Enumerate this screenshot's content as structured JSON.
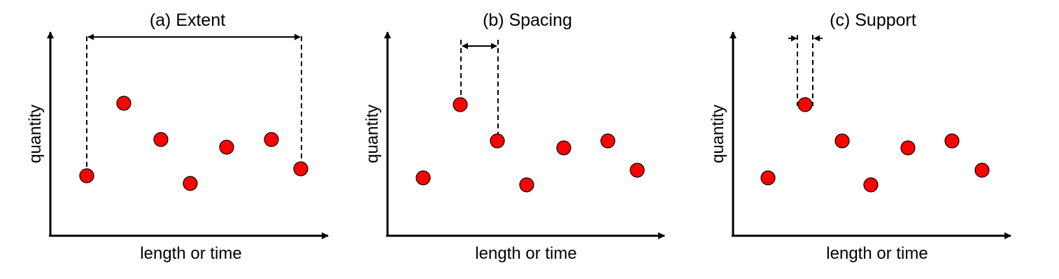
{
  "point_color": "#ff0000",
  "panels": [
    {
      "title": "(a) Extent",
      "xlabel": "length or time",
      "ylabel": "quantity",
      "annotation": "extent",
      "points": [
        1,
        2,
        3,
        4,
        5,
        6,
        7
      ]
    },
    {
      "title": "(b) Spacing",
      "xlabel": "length or time",
      "ylabel": "quantity",
      "annotation": "spacing",
      "points": [
        1,
        2,
        3,
        4,
        5,
        6,
        7
      ]
    },
    {
      "title": "(c) Support",
      "xlabel": "length or time",
      "ylabel": "quantity",
      "annotation": "support",
      "points": [
        1,
        2,
        3,
        4,
        5,
        6,
        7
      ]
    }
  ]
}
